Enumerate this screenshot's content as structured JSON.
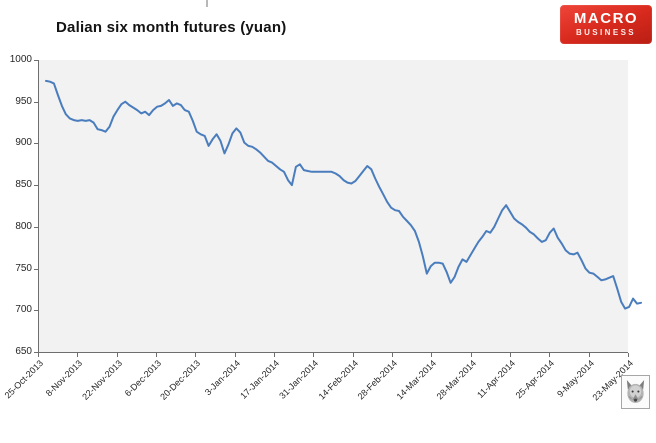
{
  "title": "Dalian six month futures (yuan)",
  "logo": {
    "line1": "MACRO",
    "line2": "BUSINESS",
    "bg_color": "#d92a1e"
  },
  "watermark": {
    "icon": "wolf-icon"
  },
  "chart_data": {
    "type": "line",
    "title": "Dalian six month futures (yuan)",
    "series": [
      {
        "name": "Dalian six month futures (yuan)",
        "values": [
          975,
          974,
          972,
          958,
          945,
          935,
          930,
          928,
          927,
          928,
          927,
          928,
          925,
          917,
          916,
          914,
          920,
          932,
          940,
          947,
          950,
          946,
          943,
          940,
          936,
          938,
          934,
          940,
          944,
          945,
          948,
          952,
          945,
          948,
          946,
          940,
          938,
          927,
          914,
          911,
          909,
          897,
          905,
          911,
          903,
          888,
          899,
          912,
          918,
          913,
          901,
          897,
          896,
          893,
          889,
          884,
          879,
          877,
          873,
          869,
          866,
          856,
          850,
          872,
          875,
          868,
          867,
          866,
          866,
          866,
          866,
          866,
          866,
          864,
          861,
          856,
          853,
          852,
          855,
          861,
          867,
          873,
          869,
          858,
          848,
          839,
          830,
          823,
          820,
          819,
          812,
          807,
          802,
          795,
          782,
          765,
          744,
          753,
          757,
          757,
          756,
          746,
          733,
          740,
          752,
          761,
          758,
          766,
          774,
          782,
          788,
          795,
          793,
          800,
          810,
          820,
          826,
          818,
          810,
          806,
          803,
          799,
          794,
          791,
          786,
          782,
          784,
          793,
          798,
          787,
          780,
          772,
          768,
          767,
          769,
          760,
          750,
          745,
          744,
          740,
          736,
          737,
          739,
          741,
          726,
          710,
          702,
          704,
          714,
          708,
          709
        ]
      }
    ],
    "x_tick_labels": [
      "25-Oct-2013",
      "8-Nov-2013",
      "22-Nov-2013",
      "6-Dec-2013",
      "20-Dec-2013",
      "3-Jan-2014",
      "17-Jan-2014",
      "31-Jan-2014",
      "14-Feb-2014",
      "28-Feb-2014",
      "14-Mar-2014",
      "28-Mar-2014",
      "11-Apr-2014",
      "25-Apr-2014",
      "9-May-2014",
      "23-May-2014"
    ],
    "y_ticks": [
      1000,
      950,
      900,
      850,
      800,
      750,
      700,
      650
    ],
    "ylim": [
      650,
      1000
    ],
    "xlabel": "",
    "ylabel": "",
    "grid": false,
    "legend": "none",
    "line_color": "#4a7dbd",
    "plot_bg_color": "#f2f2f2",
    "axis_color": "#6e6e6e"
  }
}
